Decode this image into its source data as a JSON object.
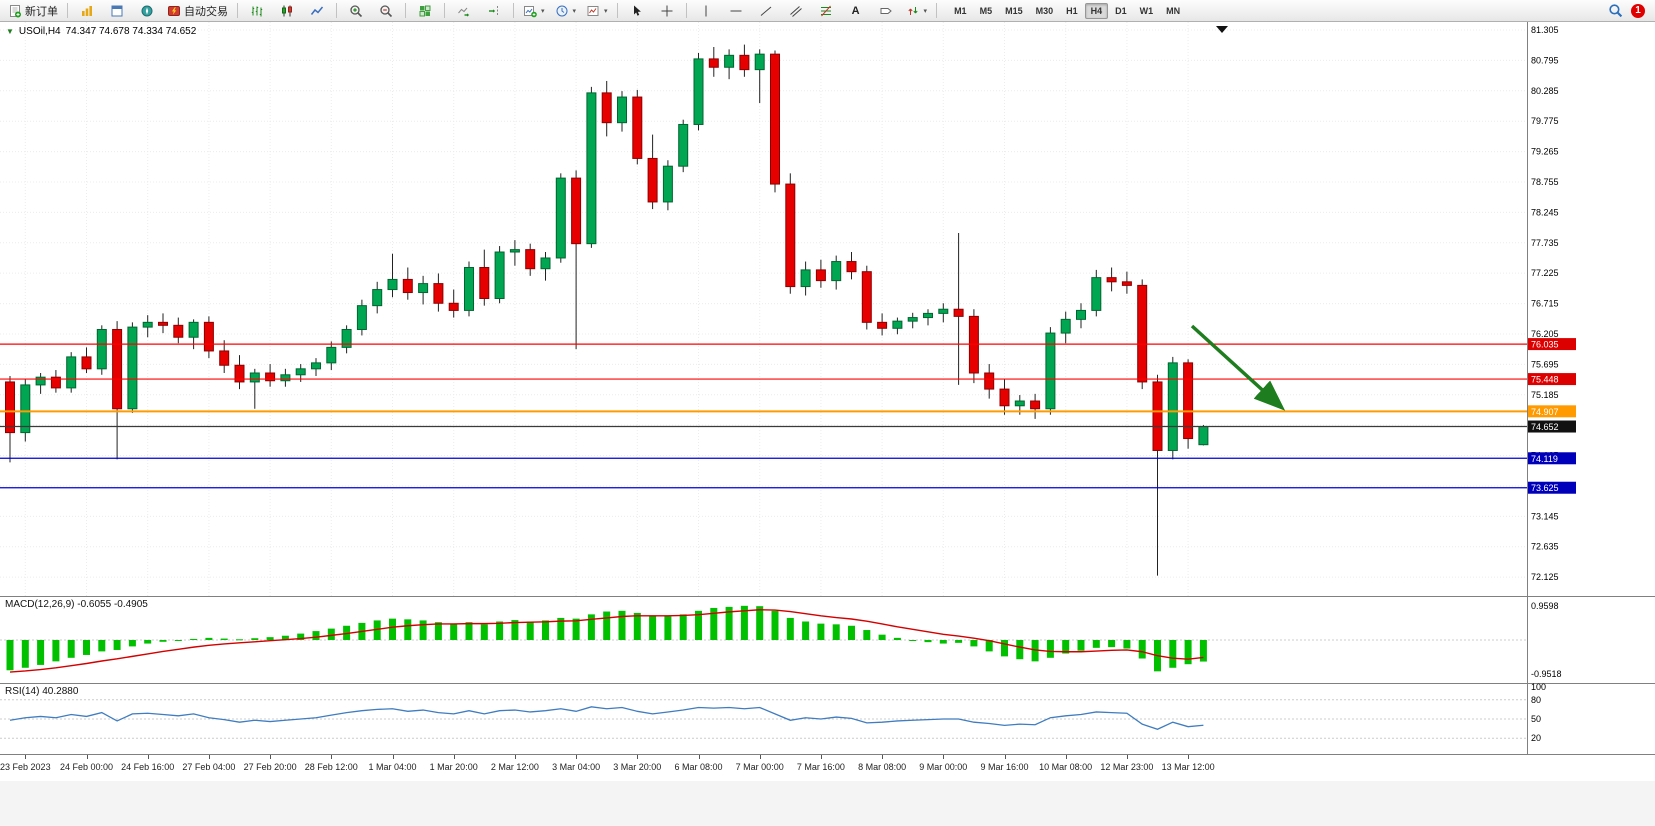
{
  "toolbar": {
    "new_order": "新订单",
    "autotrading": "自动交易",
    "text_tool": "A",
    "timeframes": [
      "M1",
      "M5",
      "M15",
      "M30",
      "H1",
      "H4",
      "D1",
      "W1",
      "MN"
    ],
    "active_timeframe": "H4",
    "notification_count": "1"
  },
  "icons": {
    "symbol_marker": "▼",
    "dropdown_caret": "▾"
  },
  "chart": {
    "symbol_label": "USOil,H4",
    "ohlc_label": "74.347 74.678 74.334 74.652",
    "colors": {
      "up": "#00a651",
      "up_border": "#00662f",
      "down": "#e60000",
      "down_border": "#8f0000",
      "macd_hist": "#00c000",
      "macd_signal": "#d40000",
      "rsi_line": "#3f7cc0",
      "arrow": "#1e7d1e"
    }
  },
  "indicators": {
    "macd_label": "MACD(12,26,9)",
    "macd_values": "-0.6055 -0.4905",
    "macd_scale_max": "0.9598",
    "macd_scale_min": "-0.9518",
    "rsi_label": "RSI(14)",
    "rsi_value": "40.2880",
    "rsi_levels": [
      "100",
      "80",
      "50",
      "20"
    ]
  },
  "price_lines": [
    {
      "name": "resistance-1",
      "price": 76.035,
      "label": "76.035",
      "line": "#ff0000",
      "bg": "#dd0000",
      "thick": false
    },
    {
      "name": "resistance-2",
      "price": 75.448,
      "label": "75.448",
      "line": "#ff0000",
      "bg": "#dd0000",
      "thick": false
    },
    {
      "name": "pivot",
      "price": 74.907,
      "label": "74.907",
      "line": "#ff9a00",
      "bg": "#ff9a00",
      "thick": true
    },
    {
      "name": "bid",
      "price": 74.652,
      "label": "74.652",
      "line": "#3a3a3a",
      "bg": "#111111",
      "thick": false
    },
    {
      "name": "support-1",
      "price": 74.119,
      "label": "74.119",
      "line": "#0000dd",
      "bg": "#0000bb",
      "thick": false
    },
    {
      "name": "support-2",
      "price": 73.625,
      "label": "73.625",
      "line": "#0000dd",
      "bg": "#0000bb",
      "thick": false
    }
  ],
  "price_axis": [
    "81.305",
    "80.795",
    "80.285",
    "79.775",
    "79.265",
    "78.755",
    "78.245",
    "77.735",
    "77.225",
    "76.715",
    "76.205",
    "75.695",
    "75.185",
    "74.675",
    "74.165",
    "73.655",
    "73.145",
    "72.635",
    "72.125"
  ],
  "chart_data": [
    {
      "type": "candlestick",
      "title": "USOil,H4",
      "timeframe": "H4",
      "ohlc_current": {
        "open": 74.347,
        "high": 74.678,
        "low": 74.334,
        "close": 74.652
      },
      "ylim": [
        71.9,
        81.45
      ],
      "price_step": 0.51,
      "label_every": 4,
      "first_label_index": 1,
      "time_labels": [
        "23 Feb 2023",
        "24 Feb 00:00",
        "24 Feb 16:00",
        "27 Feb 04:00",
        "27 Feb 20:00",
        "28 Feb 12:00",
        "1 Mar 04:00",
        "1 Mar 20:00",
        "2 Mar 12:00",
        "3 Mar 04:00",
        "3 Mar 20:00",
        "6 Mar 08:00",
        "7 Mar 00:00",
        "7 Mar 16:00",
        "8 Mar 08:00",
        "9 Mar 00:00",
        "9 Mar 16:00",
        "10 Mar 08:00",
        "12 Mar 23:00",
        "13 Mar 12:00"
      ],
      "candles": [
        [
          75.4,
          75.5,
          74.05,
          74.55
        ],
        [
          74.55,
          75.45,
          74.4,
          75.35
        ],
        [
          75.35,
          75.55,
          75.2,
          75.48
        ],
        [
          75.48,
          75.6,
          75.22,
          75.3
        ],
        [
          75.3,
          75.9,
          75.22,
          75.82
        ],
        [
          75.82,
          75.98,
          75.55,
          75.62
        ],
        [
          75.62,
          76.35,
          75.52,
          76.28
        ],
        [
          76.28,
          76.42,
          74.1,
          74.95
        ],
        [
          74.95,
          76.4,
          74.88,
          76.32
        ],
        [
          76.32,
          76.52,
          76.15,
          76.4
        ],
        [
          76.4,
          76.55,
          76.22,
          76.35
        ],
        [
          76.35,
          76.48,
          76.05,
          76.15
        ],
        [
          76.15,
          76.45,
          75.95,
          76.4
        ],
        [
          76.4,
          76.5,
          75.8,
          75.92
        ],
        [
          75.92,
          76.1,
          75.55,
          75.68
        ],
        [
          75.68,
          75.85,
          75.28,
          75.4
        ],
        [
          75.4,
          75.62,
          74.95,
          75.55
        ],
        [
          75.55,
          75.7,
          75.32,
          75.42
        ],
        [
          75.42,
          75.62,
          75.32,
          75.52
        ],
        [
          75.52,
          75.7,
          75.4,
          75.62
        ],
        [
          75.62,
          75.8,
          75.5,
          75.72
        ],
        [
          75.72,
          76.08,
          75.6,
          75.98
        ],
        [
          75.98,
          76.35,
          75.88,
          76.28
        ],
        [
          76.28,
          76.78,
          76.18,
          76.68
        ],
        [
          76.68,
          77.08,
          76.55,
          76.95
        ],
        [
          76.95,
          77.55,
          76.82,
          77.12
        ],
        [
          77.12,
          77.32,
          76.78,
          76.9
        ],
        [
          76.9,
          77.18,
          76.7,
          77.05
        ],
        [
          77.05,
          77.22,
          76.58,
          76.72
        ],
        [
          76.72,
          76.95,
          76.48,
          76.6
        ],
        [
          76.6,
          77.42,
          76.5,
          77.32
        ],
        [
          77.32,
          77.62,
          76.68,
          76.8
        ],
        [
          76.8,
          77.68,
          76.72,
          77.58
        ],
        [
          77.58,
          77.78,
          77.35,
          77.62
        ],
        [
          77.62,
          77.72,
          77.18,
          77.3
        ],
        [
          77.3,
          77.58,
          77.1,
          77.48
        ],
        [
          77.48,
          78.9,
          77.4,
          78.82
        ],
        [
          78.82,
          78.95,
          75.95,
          77.72
        ],
        [
          77.72,
          80.35,
          77.65,
          80.25
        ],
        [
          80.25,
          80.45,
          79.52,
          79.75
        ],
        [
          79.75,
          80.28,
          79.6,
          80.18
        ],
        [
          80.18,
          80.3,
          79.05,
          79.15
        ],
        [
          79.15,
          79.55,
          78.3,
          78.42
        ],
        [
          78.42,
          79.12,
          78.28,
          79.02
        ],
        [
          79.02,
          79.8,
          78.92,
          79.72
        ],
        [
          79.72,
          80.92,
          79.62,
          80.82
        ],
        [
          80.82,
          81.02,
          80.52,
          80.68
        ],
        [
          80.68,
          80.98,
          80.48,
          80.88
        ],
        [
          80.88,
          81.06,
          80.52,
          80.64
        ],
        [
          80.64,
          80.98,
          80.08,
          80.9
        ],
        [
          80.9,
          80.96,
          78.58,
          78.72
        ],
        [
          78.72,
          78.9,
          76.88,
          77.0
        ],
        [
          77.0,
          77.42,
          76.85,
          77.28
        ],
        [
          77.28,
          77.45,
          76.98,
          77.1
        ],
        [
          77.1,
          77.52,
          76.95,
          77.42
        ],
        [
          77.42,
          77.58,
          77.12,
          77.25
        ],
        [
          77.25,
          77.35,
          76.28,
          76.4
        ],
        [
          76.4,
          76.55,
          76.18,
          76.3
        ],
        [
          76.3,
          76.48,
          76.2,
          76.42
        ],
        [
          76.42,
          76.56,
          76.3,
          76.48
        ],
        [
          76.48,
          76.62,
          76.35,
          76.55
        ],
        [
          76.55,
          76.72,
          76.4,
          76.62
        ],
        [
          76.62,
          77.9,
          75.35,
          76.5
        ],
        [
          76.5,
          76.62,
          75.38,
          75.55
        ],
        [
          75.55,
          75.7,
          75.12,
          75.28
        ],
        [
          75.28,
          75.45,
          74.85,
          75.0
        ],
        [
          75.0,
          75.18,
          74.85,
          75.08
        ],
        [
          75.08,
          75.2,
          74.78,
          74.95
        ],
        [
          74.95,
          76.32,
          74.85,
          76.22
        ],
        [
          76.22,
          76.58,
          76.05,
          76.45
        ],
        [
          76.45,
          76.72,
          76.3,
          76.6
        ],
        [
          76.6,
          77.28,
          76.5,
          77.15
        ],
        [
          77.15,
          77.32,
          76.92,
          77.08
        ],
        [
          77.08,
          77.25,
          76.88,
          77.02
        ],
        [
          77.02,
          77.12,
          75.28,
          75.4
        ],
        [
          75.4,
          75.52,
          72.15,
          74.25
        ],
        [
          74.25,
          75.82,
          74.1,
          75.72
        ],
        [
          75.72,
          75.78,
          74.28,
          74.45
        ],
        [
          74.347,
          74.678,
          74.334,
          74.652
        ]
      ]
    },
    {
      "type": "bar",
      "name": "MACD(12,26,9)",
      "values_label": "-0.6055 -0.4905",
      "ylim": [
        -0.9518,
        0.9598
      ],
      "hist": [
        -0.85,
        -0.78,
        -0.7,
        -0.6,
        -0.5,
        -0.42,
        -0.32,
        -0.28,
        -0.18,
        -0.1,
        -0.05,
        -0.02,
        0.03,
        0.06,
        0.04,
        0.02,
        0.05,
        0.08,
        0.12,
        0.18,
        0.25,
        0.32,
        0.4,
        0.48,
        0.55,
        0.6,
        0.58,
        0.55,
        0.5,
        0.46,
        0.5,
        0.44,
        0.52,
        0.56,
        0.52,
        0.55,
        0.62,
        0.6,
        0.72,
        0.8,
        0.82,
        0.76,
        0.68,
        0.66,
        0.72,
        0.82,
        0.9,
        0.93,
        0.96,
        0.95,
        0.82,
        0.62,
        0.52,
        0.46,
        0.44,
        0.4,
        0.28,
        0.15,
        0.06,
        0.0,
        -0.06,
        -0.1,
        -0.08,
        -0.18,
        -0.32,
        -0.46,
        -0.54,
        -0.6,
        -0.5,
        -0.38,
        -0.3,
        -0.22,
        -0.2,
        -0.24,
        -0.52,
        -0.88,
        -0.78,
        -0.68,
        -0.6055
      ],
      "signal": [
        -0.9,
        -0.87,
        -0.83,
        -0.78,
        -0.72,
        -0.66,
        -0.59,
        -0.53,
        -0.46,
        -0.39,
        -0.32,
        -0.26,
        -0.2,
        -0.15,
        -0.11,
        -0.08,
        -0.05,
        -0.02,
        0.01,
        0.04,
        0.08,
        0.13,
        0.18,
        0.24,
        0.3,
        0.36,
        0.4,
        0.43,
        0.45,
        0.45,
        0.46,
        0.46,
        0.47,
        0.49,
        0.5,
        0.51,
        0.53,
        0.54,
        0.58,
        0.62,
        0.66,
        0.68,
        0.68,
        0.68,
        0.69,
        0.71,
        0.75,
        0.79,
        0.82,
        0.85,
        0.84,
        0.8,
        0.74,
        0.68,
        0.63,
        0.59,
        0.53,
        0.45,
        0.37,
        0.3,
        0.23,
        0.16,
        0.11,
        0.05,
        -0.02,
        -0.11,
        -0.2,
        -0.28,
        -0.32,
        -0.33,
        -0.33,
        -0.31,
        -0.29,
        -0.28,
        -0.33,
        -0.44,
        -0.51,
        -0.54,
        -0.4905
      ]
    },
    {
      "type": "line",
      "name": "RSI(14)",
      "value_label": "40.2880",
      "ylim": [
        0,
        100
      ],
      "levels": [
        80,
        50,
        20
      ],
      "values": [
        48,
        52,
        54,
        52,
        57,
        54,
        60,
        47,
        58,
        59,
        57,
        55,
        58,
        52,
        49,
        45,
        48,
        46,
        48,
        50,
        52,
        56,
        60,
        63,
        65,
        66,
        62,
        64,
        60,
        58,
        63,
        58,
        63,
        64,
        61,
        63,
        66,
        62,
        69,
        66,
        68,
        62,
        58,
        61,
        64,
        68,
        67,
        68,
        66,
        68,
        58,
        48,
        52,
        50,
        53,
        51,
        44,
        45,
        47,
        48,
        49,
        50,
        50,
        45,
        43,
        40,
        42,
        41,
        52,
        55,
        57,
        61,
        60,
        59,
        42,
        34,
        45,
        38,
        40.29
      ]
    }
  ],
  "annotation": {
    "trend_arrow_direction": "down-right"
  }
}
